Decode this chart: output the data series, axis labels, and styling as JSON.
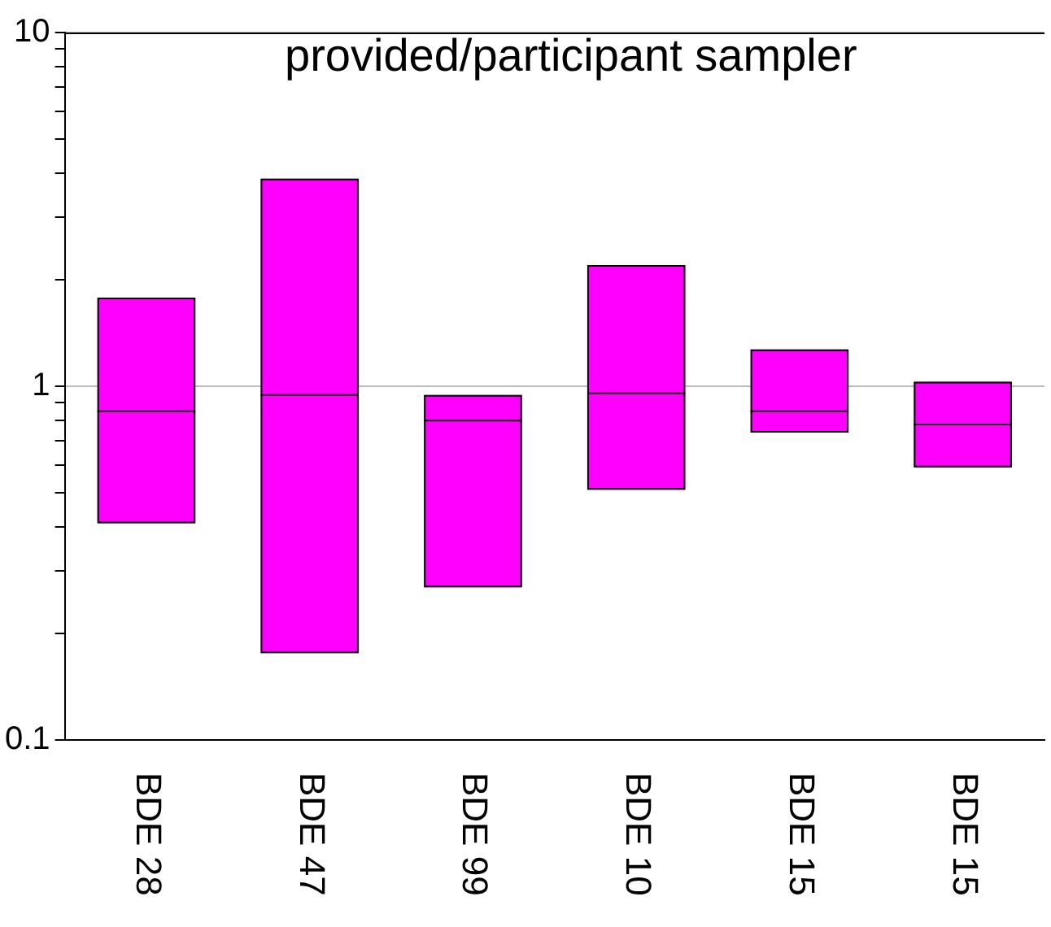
{
  "chart_data": {
    "type": "box",
    "title": "provided/participant sampler",
    "categories": [
      "BDE 28",
      "BDE 47",
      "BDE 99",
      "BDE 10",
      "BDE 15",
      "BDE 15"
    ],
    "boxes": [
      {
        "low": 0.41,
        "q1": 0.41,
        "median": 0.85,
        "q3": 1.78,
        "high": 1.78
      },
      {
        "low": 0.176,
        "q1": 0.176,
        "median": 0.945,
        "q3": 3.86,
        "high": 3.86
      },
      {
        "low": 0.27,
        "q1": 0.27,
        "median": 0.8,
        "q3": 0.945,
        "high": 0.945
      },
      {
        "low": 0.51,
        "q1": 0.51,
        "median": 0.955,
        "q3": 2.2,
        "high": 2.2
      },
      {
        "low": 0.74,
        "q1": 0.74,
        "median": 0.85,
        "q3": 1.27,
        "high": 1.27
      },
      {
        "low": 0.59,
        "q1": 0.59,
        "median": 0.78,
        "q3": 1.03,
        "high": 1.03
      }
    ],
    "color": "#ff00ff",
    "log": "y",
    "ylim": [
      0.1,
      10
    ],
    "yticks": [
      0.1,
      {
        "value": 0.2,
        "label": null
      },
      {
        "value": 0.3,
        "label": null
      },
      {
        "value": 0.4,
        "label": null
      },
      {
        "value": 0.5,
        "label": null
      },
      {
        "value": 0.6,
        "label": null
      },
      {
        "value": 0.7,
        "label": null
      },
      {
        "value": 0.8,
        "label": null
      },
      {
        "value": 0.9,
        "label": null
      },
      1,
      {
        "value": 2,
        "label": null
      },
      {
        "value": 3,
        "label": null
      },
      {
        "value": 4,
        "label": null
      },
      {
        "value": 5,
        "label": null
      },
      {
        "value": 6,
        "label": null
      },
      {
        "value": 7,
        "label": null
      },
      {
        "value": 8,
        "label": null
      },
      {
        "value": 9,
        "label": null
      },
      10
    ],
    "grid": "y"
  }
}
